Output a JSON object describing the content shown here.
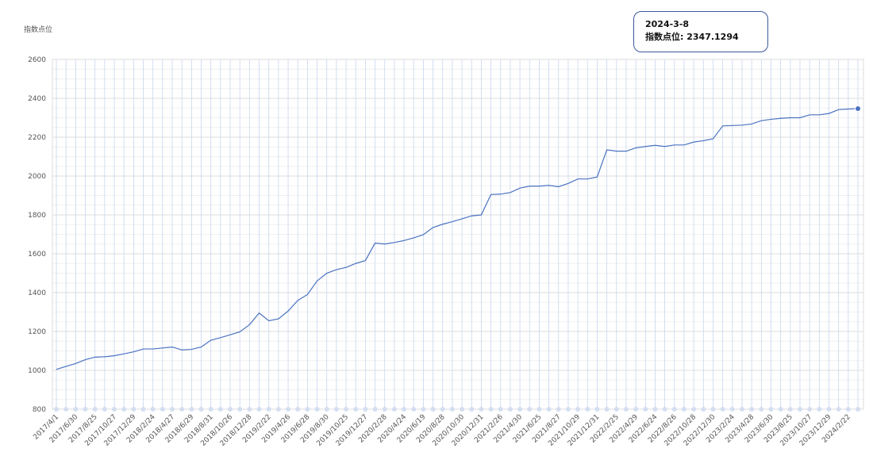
{
  "chart_data": {
    "type": "line",
    "y_label": "指数点位",
    "categories": [
      "2017/4/1",
      null,
      "2017/6/30",
      null,
      "2017/8/25",
      null,
      "2017/10/27",
      null,
      "2017/12/29",
      null,
      "2018/2/24",
      null,
      "2018/4/27",
      null,
      "2018/6/29",
      null,
      "2018/8/31",
      null,
      "2018/10/26",
      null,
      "2018/12/28",
      null,
      "2019/2/22",
      null,
      "2019/4/26",
      null,
      "2019/6/28",
      null,
      "2019/8/30",
      null,
      "2019/10/25",
      null,
      "2019/12/27",
      null,
      "2020/2/28",
      null,
      "2020/4/24",
      null,
      "2020/6/19",
      null,
      "2020/8/28",
      null,
      "2020/10/30",
      null,
      "2020/12/31",
      null,
      "2021/2/26",
      null,
      "2021/4/30",
      null,
      "2021/6/25",
      null,
      "2021/8/27",
      null,
      "2021/10/29",
      null,
      "2021/12/31",
      null,
      "2022/2/25",
      null,
      "2022/4/29",
      null,
      "2022/6/24",
      null,
      "2022/8/26",
      null,
      "2022/10/28",
      null,
      "2022/12/30",
      null,
      "2023/2/24",
      null,
      "2023/4/28",
      null,
      "2023/6/30",
      null,
      "2023/8/25",
      null,
      "2023/10/27",
      null,
      "2023/12/29",
      null,
      "2024/2/22",
      null
    ],
    "series": [
      {
        "name": "指数点位",
        "color": "#4a72c0",
        "values": [
          1005,
          1020,
          1035,
          1055,
          1068,
          1070,
          1075,
          1085,
          1095,
          1110,
          1110,
          1115,
          1120,
          1105,
          1108,
          1120,
          1155,
          1168,
          1183,
          1198,
          1235,
          1295,
          1255,
          1265,
          1305,
          1360,
          1390,
          1460,
          1500,
          1518,
          1530,
          1550,
          1565,
          1655,
          1650,
          1658,
          1668,
          1682,
          1698,
          1735,
          1752,
          1765,
          1780,
          1795,
          1800,
          1905,
          1907,
          1915,
          1938,
          1948,
          1948,
          1952,
          1945,
          1962,
          1985,
          1985,
          1995,
          2135,
          2128,
          2128,
          2145,
          2152,
          2158,
          2152,
          2160,
          2160,
          2175,
          2182,
          2192,
          2258,
          2260,
          2262,
          2268,
          2285,
          2292,
          2297,
          2300,
          2300,
          2315,
          2315,
          2322,
          2342,
          2345,
          2347.1294
        ]
      }
    ],
    "ylim": [
      800,
      2600
    ],
    "yticks": [
      800,
      1000,
      1200,
      1400,
      1600,
      1800,
      2000,
      2200,
      2400,
      2600
    ],
    "grid": true,
    "tooltip": {
      "title": "2024-3-8",
      "text": "指数点位: 2347.1294"
    }
  }
}
